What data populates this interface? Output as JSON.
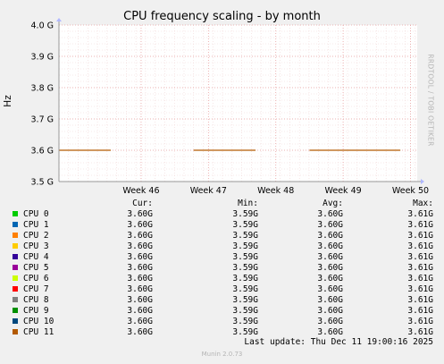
{
  "chart_data": {
    "type": "line",
    "title": "CPU frequency scaling - by month",
    "ylabel": "Hz",
    "ylim": [
      3.5,
      4.0
    ],
    "yticks": [
      {
        "v": 3.5,
        "label": "3.5 G"
      },
      {
        "v": 3.6,
        "label": "3.6 G"
      },
      {
        "v": 3.7,
        "label": "3.7 G"
      },
      {
        "v": 3.8,
        "label": "3.8 G"
      },
      {
        "v": 3.9,
        "label": "3.9 G"
      },
      {
        "v": 4.0,
        "label": "4.0 G"
      }
    ],
    "xlim": [
      44.78,
      50.1
    ],
    "xticks": [
      {
        "v": 46,
        "label": "Week 46"
      },
      {
        "v": 47,
        "label": "Week 47"
      },
      {
        "v": 48,
        "label": "Week 48"
      },
      {
        "v": 49,
        "label": "Week 49"
      },
      {
        "v": 50,
        "label": "Week 50"
      }
    ],
    "grid": true,
    "line_segments": [
      {
        "x0": 44.78,
        "x1": 45.55,
        "y": 3.6
      },
      {
        "x0": 46.78,
        "x1": 47.7,
        "y": 3.6
      },
      {
        "x0": 48.5,
        "x1": 49.85,
        "y": 3.6
      }
    ],
    "line_color": "#b35a00",
    "legend_headers": [
      "Cur:",
      "Min:",
      "Avg:",
      "Max:"
    ],
    "series": [
      {
        "name": "CPU 0",
        "color": "#00cc00",
        "cur": "3.60G",
        "min": "3.59G",
        "avg": "3.60G",
        "max": "3.61G"
      },
      {
        "name": "CPU 1",
        "color": "#0066b3",
        "cur": "3.60G",
        "min": "3.59G",
        "avg": "3.60G",
        "max": "3.61G"
      },
      {
        "name": "CPU 2",
        "color": "#ff8000",
        "cur": "3.60G",
        "min": "3.59G",
        "avg": "3.60G",
        "max": "3.61G"
      },
      {
        "name": "CPU 3",
        "color": "#ffcc00",
        "cur": "3.60G",
        "min": "3.59G",
        "avg": "3.60G",
        "max": "3.61G"
      },
      {
        "name": "CPU 4",
        "color": "#330099",
        "cur": "3.60G",
        "min": "3.59G",
        "avg": "3.60G",
        "max": "3.61G"
      },
      {
        "name": "CPU 5",
        "color": "#990099",
        "cur": "3.60G",
        "min": "3.59G",
        "avg": "3.60G",
        "max": "3.61G"
      },
      {
        "name": "CPU 6",
        "color": "#ccff00",
        "cur": "3.60G",
        "min": "3.59G",
        "avg": "3.60G",
        "max": "3.61G"
      },
      {
        "name": "CPU 7",
        "color": "#ff0000",
        "cur": "3.60G",
        "min": "3.59G",
        "avg": "3.60G",
        "max": "3.61G"
      },
      {
        "name": "CPU 8",
        "color": "#808080",
        "cur": "3.60G",
        "min": "3.59G",
        "avg": "3.60G",
        "max": "3.61G"
      },
      {
        "name": "CPU 9",
        "color": "#008f00",
        "cur": "3.60G",
        "min": "3.59G",
        "avg": "3.60G",
        "max": "3.61G"
      },
      {
        "name": "CPU 10",
        "color": "#00487d",
        "cur": "3.60G",
        "min": "3.59G",
        "avg": "3.60G",
        "max": "3.61G"
      },
      {
        "name": "CPU 11",
        "color": "#b35a00",
        "cur": "3.60G",
        "min": "3.59G",
        "avg": "3.60G",
        "max": "3.61G"
      }
    ]
  },
  "side_text": "RRDTOOL / TOBI OETIKER",
  "last_update": "Last update: Thu Dec 11 19:00:16 2025",
  "footer": "Munin 2.0.73"
}
